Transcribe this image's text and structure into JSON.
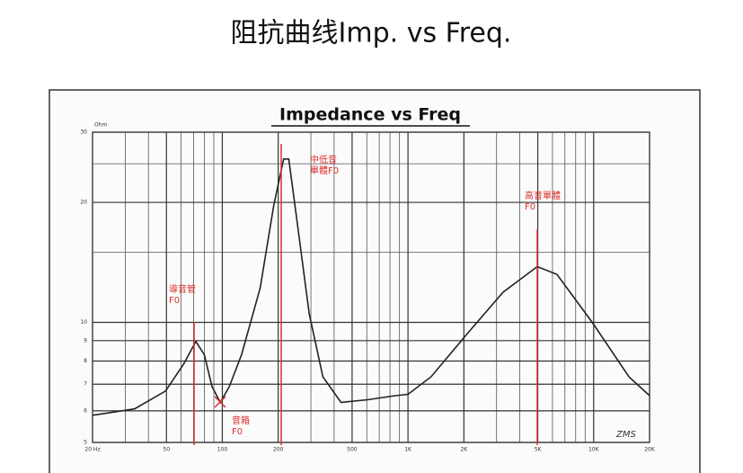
{
  "page_title": "阻抗曲线Imp. vs Freq.",
  "chart_data": {
    "type": "line",
    "title": "Impedance vs Freq",
    "y_unit": "Ohm",
    "x_scale": "log",
    "y_scale": "log",
    "grid": true,
    "color": "#222222",
    "x": [
      20,
      33.7,
      49.5,
      62,
      72,
      80,
      88,
      97.5,
      109,
      127,
      160,
      189,
      214,
      228,
      250,
      294,
      348,
      436,
      608,
      855,
      1000,
      1330,
      2100,
      3250,
      4970,
      6340,
      9900,
      15500,
      20000
    ],
    "values": [
      5.85,
      6.07,
      6.73,
      7.87,
      8.96,
      8.3,
      6.9,
      6.3,
      6.9,
      8.3,
      12.2,
      19.6,
      25.7,
      25.7,
      18.6,
      10.5,
      7.3,
      6.3,
      6.4,
      6.55,
      6.6,
      7.3,
      9.4,
      11.9,
      13.8,
      13.2,
      9.95,
      7.3,
      6.55
    ],
    "xlim": [
      20,
      20000
    ],
    "ylim": [
      5,
      30
    ],
    "xticks": [
      {
        "value": 20,
        "label": "20 Hz"
      },
      50,
      100,
      200,
      500,
      {
        "value": 1000,
        "label": "1K"
      },
      {
        "value": 2000,
        "label": "2K"
      },
      {
        "value": 5000,
        "label": "5K"
      },
      {
        "value": 10000,
        "label": "10K"
      },
      {
        "value": 20000,
        "label": "20K"
      }
    ],
    "xminorticks": [
      30,
      40,
      60,
      70,
      80,
      90,
      300,
      400,
      600,
      700,
      800,
      900,
      3000,
      4000,
      6000,
      7000,
      8000,
      9000
    ],
    "yticks": [
      5,
      6,
      7,
      8,
      9,
      10,
      20,
      30
    ],
    "yminorticks": [
      15,
      25
    ],
    "annotations": [
      [
        "導音管",
        "F0"
      ],
      [
        "音箱",
        "F0"
      ],
      [
        "中低音",
        "單體F0"
      ],
      [
        "高音單體",
        "F0"
      ]
    ],
    "annotation_color": "#d9302c",
    "signature": "ZMS"
  }
}
